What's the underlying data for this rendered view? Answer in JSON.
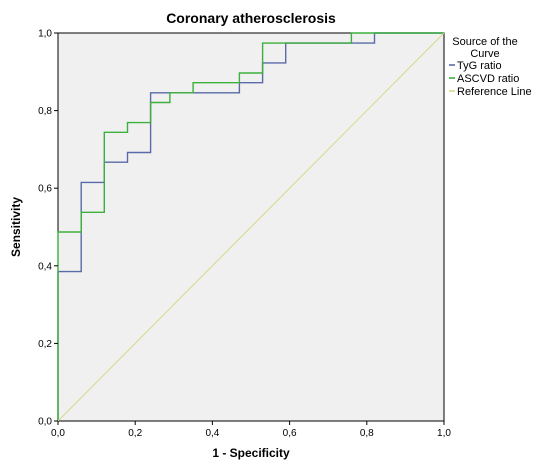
{
  "chart_data": {
    "type": "line",
    "title": "Coronary atherosclerosis",
    "xlabel": "1 - Specificity",
    "ylabel": "Sensitivity",
    "xlim": [
      0,
      1
    ],
    "ylim": [
      0,
      1
    ],
    "x_ticks": [
      "0,0",
      "0,2",
      "0,4",
      "0,6",
      "0,8",
      "1,0"
    ],
    "y_ticks": [
      "0,0",
      "0,2",
      "0,4",
      "0,6",
      "0,8",
      "1,0"
    ],
    "grid": false,
    "legend": {
      "title": "Source of the Curve",
      "title_lines": [
        "Source of the",
        "Curve"
      ],
      "placement": "right"
    },
    "series": [
      {
        "name": "TyG ratio",
        "color": "#5a6aa8",
        "x": [
          0.0,
          0.0,
          0.06,
          0.06,
          0.12,
          0.12,
          0.18,
          0.18,
          0.24,
          0.24,
          0.47,
          0.47,
          0.53,
          0.53,
          0.59,
          0.59,
          0.82,
          0.82,
          1.0
        ],
        "y": [
          0.0,
          0.385,
          0.385,
          0.615,
          0.615,
          0.667,
          0.667,
          0.692,
          0.692,
          0.846,
          0.846,
          0.872,
          0.872,
          0.923,
          0.923,
          0.974,
          0.974,
          1.0,
          1.0
        ]
      },
      {
        "name": "ASCVD ratio",
        "color": "#3cb03c",
        "x": [
          0.0,
          0.0,
          0.06,
          0.06,
          0.12,
          0.12,
          0.18,
          0.18,
          0.24,
          0.24,
          0.29,
          0.29,
          0.35,
          0.35,
          0.47,
          0.47,
          0.53,
          0.53,
          0.71,
          0.71,
          0.76,
          0.76,
          1.0
        ],
        "y": [
          0.0,
          0.487,
          0.487,
          0.538,
          0.538,
          0.744,
          0.744,
          0.769,
          0.769,
          0.821,
          0.821,
          0.846,
          0.846,
          0.872,
          0.872,
          0.897,
          0.897,
          0.974,
          0.974,
          0.974,
          0.974,
          1.0,
          1.0
        ]
      },
      {
        "name": "Reference Line",
        "color": "#d8d88c",
        "x": [
          0,
          1
        ],
        "y": [
          0,
          1
        ]
      }
    ]
  }
}
